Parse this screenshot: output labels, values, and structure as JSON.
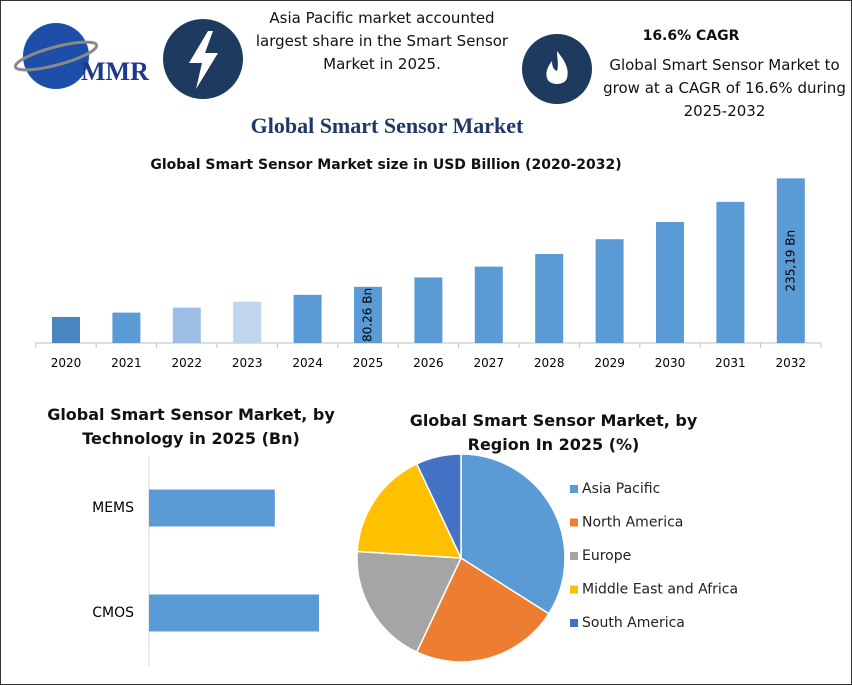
{
  "header": {
    "logo": "MMR",
    "note_left": "Asia Pacific market accounted largest share in the Smart Sensor Market in 2025.",
    "cagr_title": "16.6% CAGR",
    "note_right": "Global Smart Sensor Market to grow at a CAGR of 16.6% during 2025-2032",
    "title": "Global Smart Sensor Market"
  },
  "chart_data": [
    {
      "type": "bar",
      "title": "Global Smart Sensor Market size in USD Billion (2020-2032)",
      "categories": [
        "2020",
        "2021",
        "2022",
        "2023",
        "2024",
        "2025",
        "2026",
        "2027",
        "2028",
        "2029",
        "2030",
        "2031",
        "2032"
      ],
      "values": [
        37.2,
        43.4,
        50.6,
        59.0,
        68.8,
        80.26,
        93.6,
        109.1,
        127.2,
        148.3,
        172.9,
        201.6,
        235.19
      ],
      "value_labels": [
        null,
        null,
        null,
        null,
        null,
        "80.26 Bn",
        null,
        null,
        null,
        null,
        null,
        null,
        "235,19 Bn"
      ],
      "colors": [
        "#4a86c0",
        "#5b9bd5",
        "#9dbde6",
        "#c0d5ee",
        "#5b9bd5",
        "#5b9bd5",
        "#5b9bd5",
        "#5b9bd5",
        "#5b9bd5",
        "#5b9bd5",
        "#5b9bd5",
        "#5b9bd5",
        "#5b9bd5"
      ]
    },
    {
      "type": "hbar",
      "title": "Global Smart Sensor Market, by Technology in 2025 (Bn)",
      "categories": [
        "MEMS",
        "CMOS"
      ],
      "values": [
        37,
        50
      ],
      "color": "#5b9bd5"
    },
    {
      "type": "pie",
      "title": "Global Smart Sensor Market, by Region In 2025 (%)",
      "categories": [
        "Asia Pacific",
        "North America",
        "Europe",
        "Middle East and Africa",
        "South America"
      ],
      "values": [
        34,
        23,
        19,
        17,
        7
      ],
      "colors": [
        "#5b9bd5",
        "#ed7d31",
        "#a5a5a5",
        "#ffc000",
        "#4472c4"
      ],
      "legend": "right"
    }
  ]
}
